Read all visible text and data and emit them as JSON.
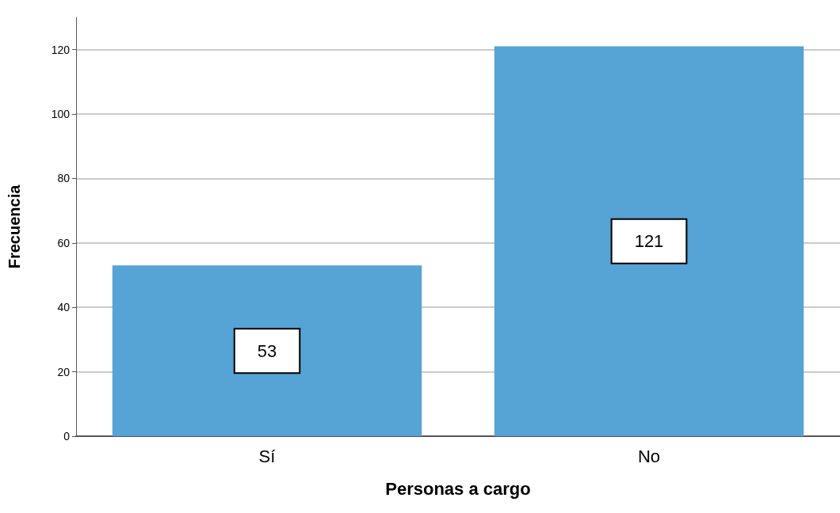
{
  "chart_data": {
    "type": "bar",
    "xlabel": "Personas a cargo",
    "ylabel": "Frecuencia",
    "categories": [
      "Sí",
      "No"
    ],
    "values": [
      53,
      121
    ],
    "color": "#56a3d5",
    "ylim": [
      0,
      130
    ],
    "yticks": [
      0,
      20,
      40,
      60,
      80,
      100,
      120
    ],
    "grid": "y",
    "data_labels": true
  }
}
